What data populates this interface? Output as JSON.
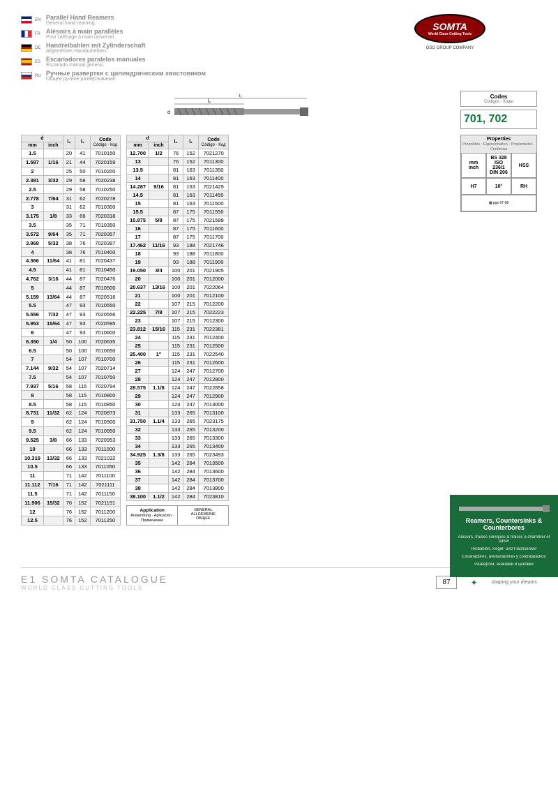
{
  "langs": [
    {
      "code": "EN",
      "flag": "en",
      "title": "Parallel Hand Reamers",
      "sub": "General hand reaming."
    },
    {
      "code": "FR",
      "flag": "fr",
      "title": "Alésoirs à main parallèles",
      "sub": "Pour l'alésage à main universel."
    },
    {
      "code": "DE",
      "flag": "de",
      "title": "Handreibahlen mit Zylinderschaft",
      "sub": "Allgemeines Handaufreiben."
    },
    {
      "code": "ES",
      "flag": "es",
      "title": "Escariadores paralelos manuales",
      "sub": "Escariado manual general."
    },
    {
      "code": "RU",
      "flag": "ru",
      "title": "Ручные развертки с цилиндрическим хвостовиком",
      "sub": "Общее ручное развертывание."
    }
  ],
  "brand": "SOMTA",
  "brand_sub": "World Class Cutting Tools",
  "osg": "OSG GROUP COMPANY",
  "codes": {
    "title": "Codes",
    "subs": "Codigos · Коды",
    "val": "701, 702"
  },
  "cols": {
    "d": "d",
    "mm": "mm",
    "inch": "inch",
    "l2": "l₂",
    "l1": "l₁",
    "code": "Code",
    "code_sub": "Código · Код"
  },
  "t1": [
    [
      "1.5",
      "",
      "20",
      "41",
      "7010150"
    ],
    [
      "1.587",
      "1/16",
      "21",
      "44",
      "7020159"
    ],
    [
      "2",
      "",
      "25",
      "50",
      "7010200"
    ],
    [
      "2.381",
      "3/32",
      "29",
      "58",
      "7020238"
    ],
    [
      "2.5",
      "",
      "29",
      "58",
      "7010250"
    ],
    [
      "2.778",
      "7/64",
      "31",
      "62",
      "7020278"
    ],
    [
      "3",
      "",
      "31",
      "62",
      "7010300"
    ],
    [
      "3.175",
      "1/8",
      "33",
      "66",
      "7020318"
    ],
    [
      "3.5",
      "",
      "35",
      "71",
      "7010350"
    ],
    [
      "3.572",
      "9/64",
      "35",
      "71",
      "7020357"
    ],
    [
      "3.969",
      "5/32",
      "38",
      "76",
      "7020397"
    ],
    [
      "4",
      "",
      "38",
      "76",
      "7010400"
    ],
    [
      "4.366",
      "11/64",
      "41",
      "81",
      "7020437"
    ],
    [
      "4.5",
      "",
      "41",
      "81",
      "7010450"
    ],
    [
      "4.762",
      "3/16",
      "44",
      "87",
      "7020476"
    ],
    [
      "5",
      "",
      "44",
      "87",
      "7010500"
    ],
    [
      "5.159",
      "13/64",
      "44",
      "87",
      "7020516"
    ],
    [
      "5.5",
      "",
      "47",
      "93",
      "7010550"
    ],
    [
      "5.556",
      "7/32",
      "47",
      "93",
      "7020556"
    ],
    [
      "5.953",
      "15/64",
      "47",
      "93",
      "7020595"
    ],
    [
      "6",
      "",
      "47",
      "93",
      "7010600"
    ],
    [
      "6.350",
      "1/4",
      "50",
      "100",
      "7020635"
    ],
    [
      "6.5",
      "",
      "50",
      "100",
      "7010650"
    ],
    [
      "7",
      "",
      "54",
      "107",
      "7010700"
    ],
    [
      "7.144",
      "9/32",
      "54",
      "107",
      "7020714"
    ],
    [
      "7.5",
      "",
      "54",
      "107",
      "7010750"
    ],
    [
      "7.937",
      "5/16",
      "58",
      "115",
      "7020794"
    ],
    [
      "8",
      "",
      "58",
      "115",
      "7010800"
    ],
    [
      "8.5",
      "",
      "58",
      "115",
      "7010850"
    ],
    [
      "8.731",
      "11/32",
      "62",
      "124",
      "7020873"
    ],
    [
      "9",
      "",
      "62",
      "124",
      "7010900"
    ],
    [
      "9.5",
      "",
      "62",
      "124",
      "7010950"
    ],
    [
      "9.525",
      "3/8",
      "66",
      "133",
      "7020953"
    ],
    [
      "10",
      "",
      "66",
      "133",
      "7011000"
    ],
    [
      "10.319",
      "13/32",
      "66",
      "133",
      "7021032"
    ],
    [
      "10.5",
      "",
      "66",
      "133",
      "7011050"
    ],
    [
      "11",
      "",
      "71",
      "142",
      "7011100"
    ],
    [
      "11.112",
      "7/16",
      "71",
      "142",
      "7021111"
    ],
    [
      "11.5",
      "",
      "71",
      "142",
      "7011150"
    ],
    [
      "11.906",
      "15/32",
      "76",
      "152",
      "7021191"
    ],
    [
      "12",
      "",
      "76",
      "152",
      "7011200"
    ],
    [
      "12.5",
      "",
      "76",
      "152",
      "7011250"
    ]
  ],
  "t2": [
    [
      "12.700",
      "1/2",
      "76",
      "152",
      "7021270"
    ],
    [
      "13",
      "",
      "76",
      "152",
      "7011300"
    ],
    [
      "13.5",
      "",
      "81",
      "163",
      "7011350"
    ],
    [
      "14",
      "",
      "81",
      "163",
      "7011400"
    ],
    [
      "14.287",
      "9/16",
      "81",
      "163",
      "7021429"
    ],
    [
      "14.5",
      "",
      "81",
      "163",
      "7011450"
    ],
    [
      "15",
      "",
      "81",
      "163",
      "7011500"
    ],
    [
      "15.5",
      "",
      "87",
      "175",
      "7011550"
    ],
    [
      "15.875",
      "5/8",
      "87",
      "175",
      "7021588"
    ],
    [
      "16",
      "",
      "87",
      "175",
      "7011600"
    ],
    [
      "17",
      "",
      "87",
      "175",
      "7011700"
    ],
    [
      "17.462",
      "11/16",
      "93",
      "188",
      "7021746"
    ],
    [
      "18",
      "",
      "93",
      "188",
      "7011800"
    ],
    [
      "19",
      "",
      "93",
      "188",
      "7011900"
    ],
    [
      "19.050",
      "3/4",
      "100",
      "201",
      "7021905"
    ],
    [
      "20",
      "",
      "100",
      "201",
      "7012000"
    ],
    [
      "20.637",
      "13/16",
      "100",
      "201",
      "7022064"
    ],
    [
      "21",
      "",
      "100",
      "201",
      "7012100"
    ],
    [
      "22",
      "",
      "107",
      "215",
      "7012200"
    ],
    [
      "22.225",
      "7/8",
      "107",
      "215",
      "7022223"
    ],
    [
      "23",
      "",
      "107",
      "215",
      "7012300"
    ],
    [
      "23.812",
      "15/16",
      "115",
      "231",
      "7022381"
    ],
    [
      "24",
      "",
      "115",
      "231",
      "7012400"
    ],
    [
      "25",
      "",
      "115",
      "231",
      "7012500"
    ],
    [
      "25.400",
      "1\"",
      "115",
      "231",
      "7022540"
    ],
    [
      "26",
      "",
      "115",
      "231",
      "7012600"
    ],
    [
      "27",
      "",
      "124",
      "247",
      "7012700"
    ],
    [
      "28",
      "",
      "124",
      "247",
      "7012800"
    ],
    [
      "28.575",
      "1.1/8",
      "124",
      "247",
      "7022858"
    ],
    [
      "29",
      "",
      "124",
      "247",
      "7012900"
    ],
    [
      "30",
      "",
      "124",
      "247",
      "7013000"
    ],
    [
      "31",
      "",
      "133",
      "265",
      "7013100"
    ],
    [
      "31.750",
      "1.1/4",
      "133",
      "265",
      "7023175"
    ],
    [
      "32",
      "",
      "133",
      "265",
      "7013200"
    ],
    [
      "33",
      "",
      "133",
      "265",
      "7013300"
    ],
    [
      "34",
      "",
      "133",
      "265",
      "7013400"
    ],
    [
      "34.925",
      "1.3/8",
      "133",
      "265",
      "7023493"
    ],
    [
      "35",
      "",
      "142",
      "284",
      "7013500"
    ],
    [
      "36",
      "",
      "142",
      "284",
      "7013600"
    ],
    [
      "37",
      "",
      "142",
      "284",
      "7013700"
    ],
    [
      "38",
      "",
      "142",
      "284",
      "7013800"
    ],
    [
      "38.100",
      "1.1/2",
      "142",
      "284",
      "7023810"
    ]
  ],
  "props": {
    "title": "Properties",
    "subs": "Propriétés · Eigenschaften · Propiedades · Свойства",
    "cells": [
      [
        "mm\ninch",
        "BS 328\nISO 236/1\nDIN 206",
        "HSS"
      ],
      [
        "H7",
        "10°",
        "RH"
      ]
    ]
  },
  "app": {
    "title": "Application",
    "subs": "Anwendung · Aplicación · Применение",
    "val": "GENERAL\nALLGEMEINE\nОБЩЕЕ"
  },
  "footer": {
    "t": "E1 SOMTA CATALOGUE",
    "s": "WORLD CLASS CUTTING TOOLS",
    "pg": "87",
    "tag": "shaping your dreams"
  },
  "green": {
    "title": "Reamers, Countersinks & Counterbores",
    "lines": [
      "Alésoirs, fraises coniques & fraises à chambrer et lamer",
      "Reibahlen, Kegel- und Flachsenker",
      "Escariadores, avellanadores y contrataladros",
      "Развертки, зенковки и цековки"
    ]
  }
}
